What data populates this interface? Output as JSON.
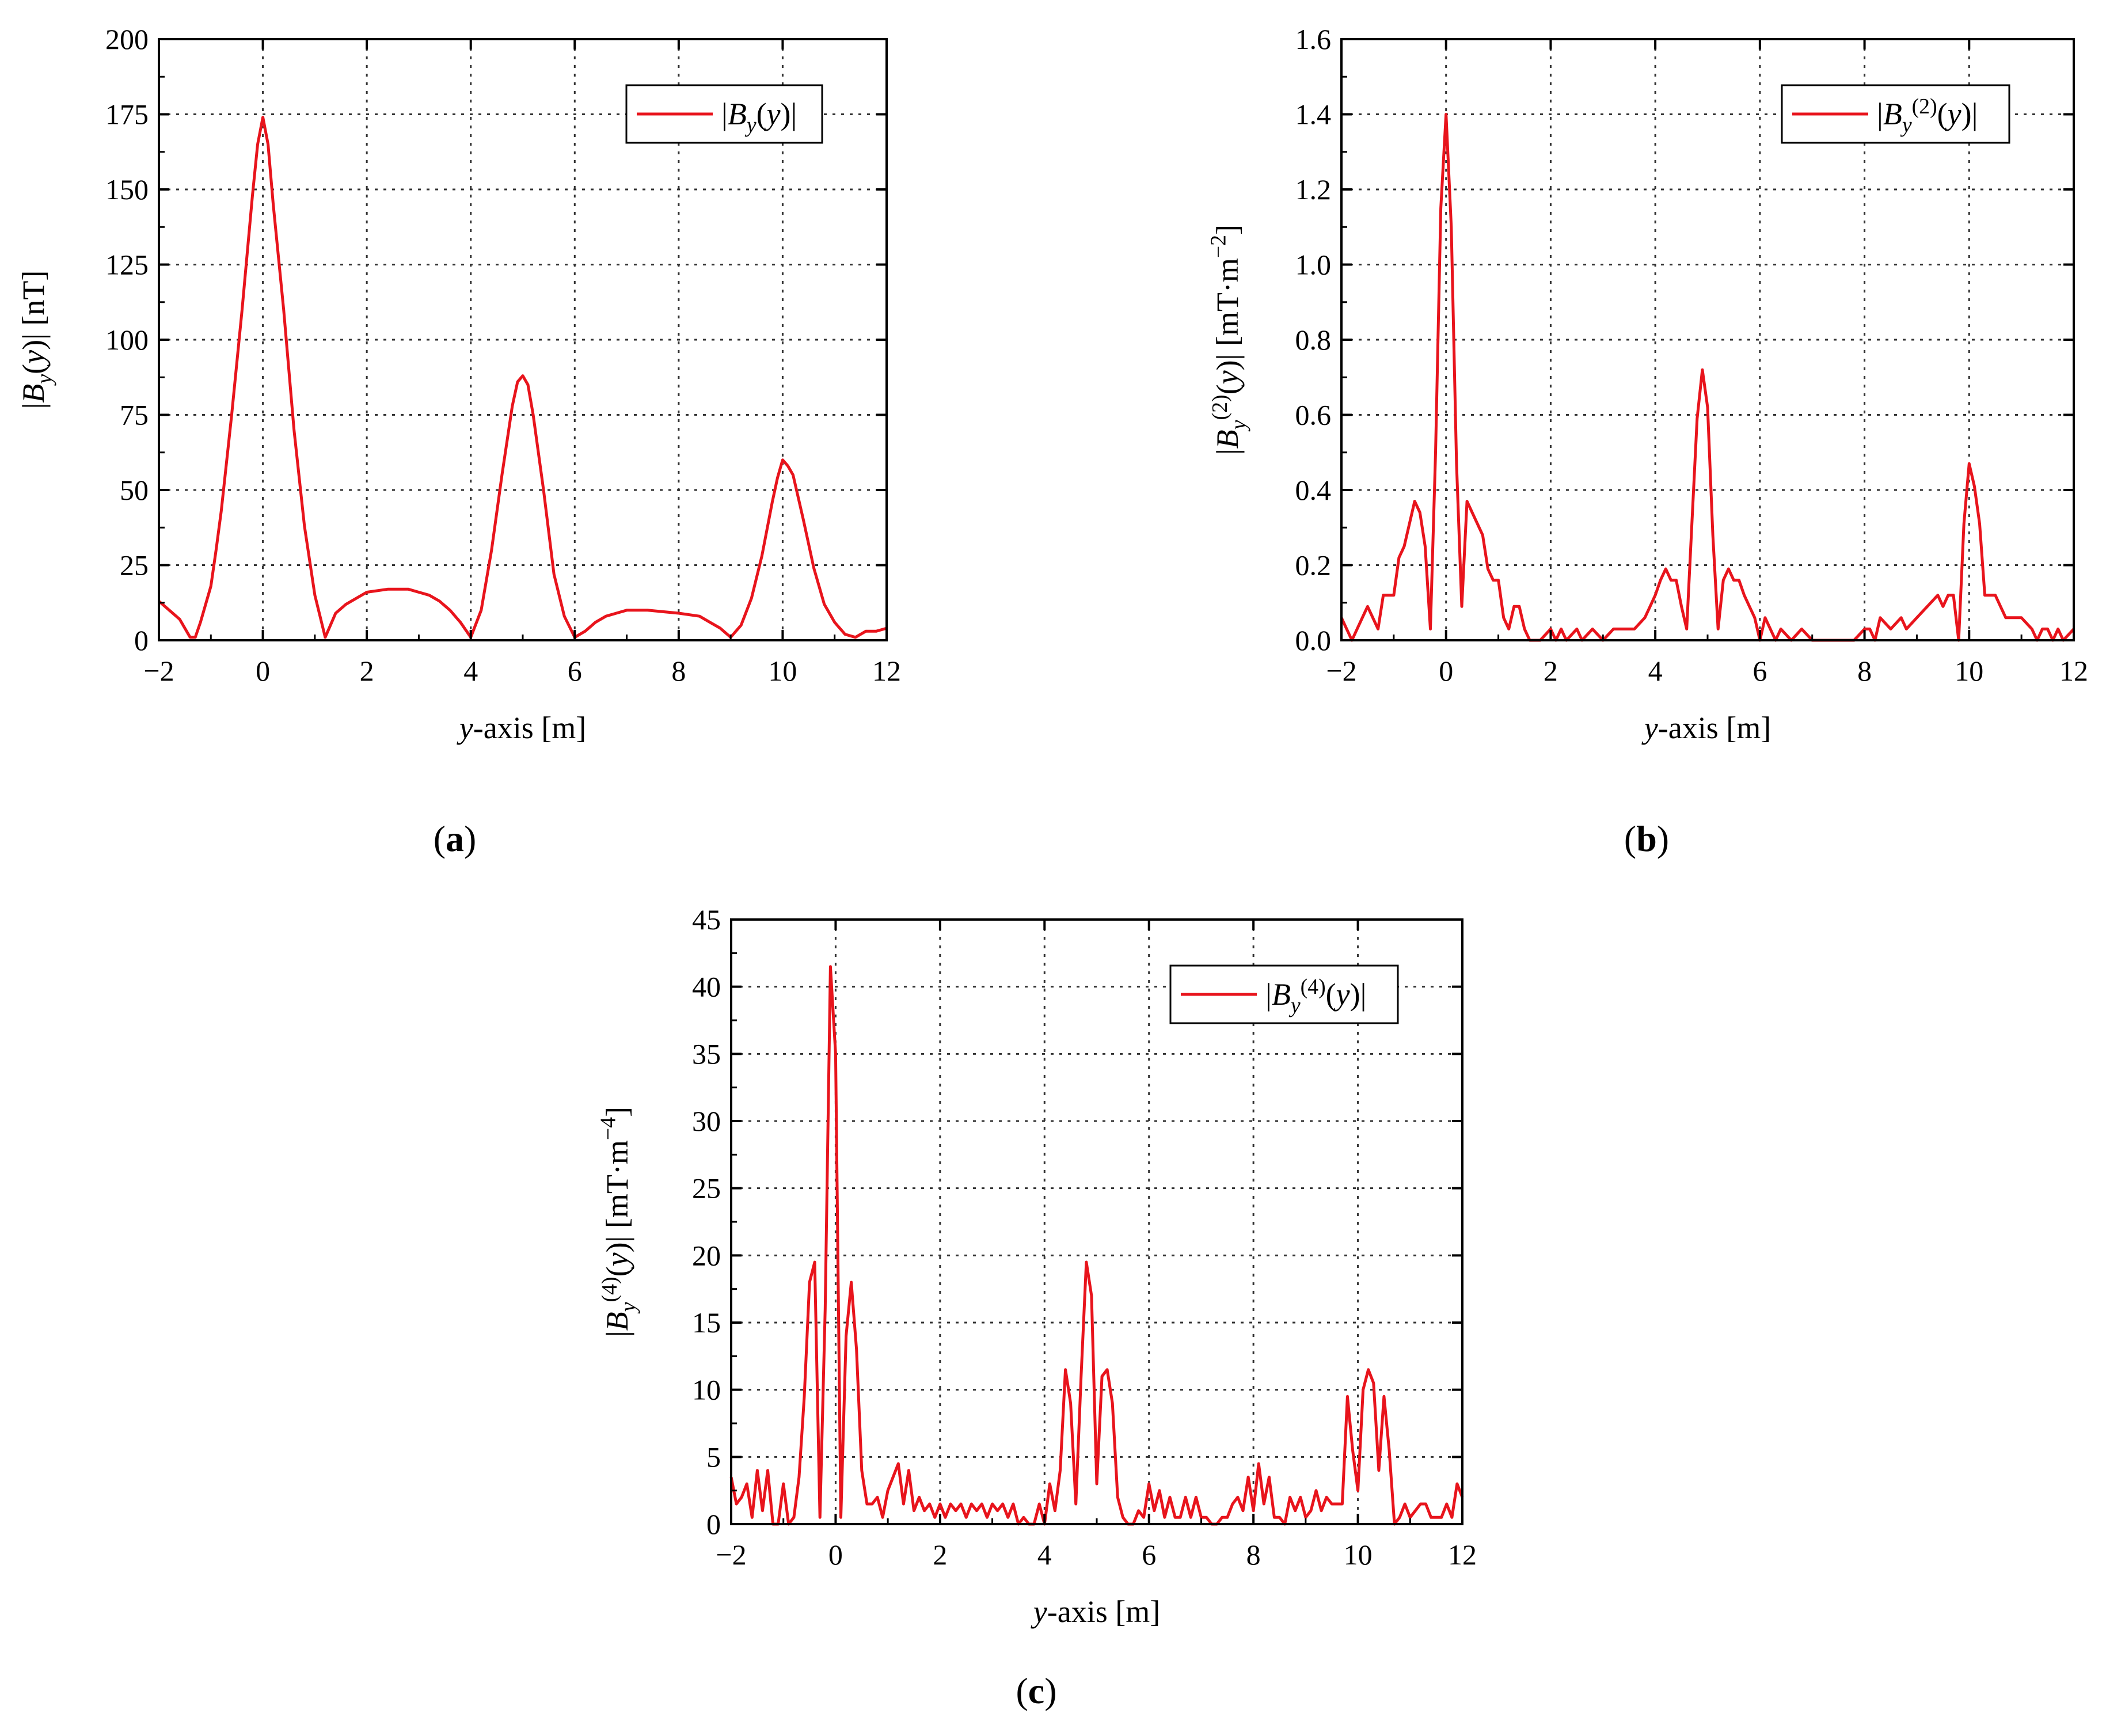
{
  "chart_data": [
    {
      "type": "line",
      "panel": "a",
      "caption": "a",
      "xlabel_italic": "y",
      "xlabel_rest": "-axis [m]",
      "ylabel": "|By(y)| [nT]",
      "legend": "|By(y)|",
      "legend_position": "top-right",
      "xlim": [
        -2,
        12
      ],
      "ylim": [
        0,
        200
      ],
      "xticks": [
        -2,
        0,
        2,
        4,
        6,
        8,
        10,
        12
      ],
      "yticks": [
        0,
        25,
        50,
        75,
        100,
        125,
        150,
        175,
        200
      ],
      "grid": true,
      "color": "#e8141c",
      "series": [
        {
          "x": [
            -2,
            -1.8,
            -1.6,
            -1.4,
            -1.3,
            -1.2,
            -1.0,
            -0.9,
            -0.8,
            -0.6,
            -0.4,
            -0.2,
            -0.1,
            0,
            0.1,
            0.2,
            0.4,
            0.6,
            0.8,
            1.0,
            1.2,
            1.4,
            1.6,
            2.0,
            2.4,
            2.8,
            3.0,
            3.2,
            3.4,
            3.6,
            3.8,
            4.0,
            4.2,
            4.4,
            4.6,
            4.8,
            4.9,
            5.0,
            5.1,
            5.2,
            5.4,
            5.6,
            5.8,
            6.0,
            6.2,
            6.4,
            6.6,
            6.8,
            7.0,
            7.4,
            8.0,
            8.4,
            8.6,
            8.8,
            9.0,
            9.2,
            9.4,
            9.6,
            9.8,
            9.9,
            10.0,
            10.1,
            10.2,
            10.4,
            10.6,
            10.8,
            11.0,
            11.2,
            11.4,
            11.6,
            11.8,
            12.0
          ],
          "y": [
            13,
            10,
            7,
            1,
            1,
            6,
            18,
            30,
            43,
            75,
            110,
            148,
            165,
            174,
            165,
            145,
            110,
            70,
            38,
            15,
            1,
            9,
            12,
            16,
            17,
            17,
            16,
            15,
            13,
            10,
            6,
            1,
            10,
            30,
            55,
            78,
            86,
            88,
            85,
            75,
            50,
            22,
            8,
            1,
            3,
            6,
            8,
            9,
            10,
            10,
            9,
            8,
            6,
            4,
            1,
            5,
            14,
            28,
            46,
            54,
            60,
            58,
            55,
            40,
            24,
            12,
            6,
            2,
            1,
            3,
            3,
            4
          ]
        }
      ]
    },
    {
      "type": "line",
      "panel": "b",
      "caption": "b",
      "xlabel_italic": "y",
      "xlabel_rest": "-axis [m]",
      "ylabel": "|By(2)(y)| [mT·m−2]",
      "legend": "|By(2)(y)|",
      "legend_position": "top-right",
      "xlim": [
        -2,
        12
      ],
      "ylim": [
        0,
        1.6
      ],
      "xticks": [
        -2,
        0,
        2,
        4,
        6,
        8,
        10,
        12
      ],
      "yticks": [
        0.0,
        0.2,
        0.4,
        0.6,
        0.8,
        1.0,
        1.2,
        1.4,
        1.6
      ],
      "grid": true,
      "color": "#e8141c",
      "series": [
        {
          "x": [
            -2,
            -1.8,
            -1.6,
            -1.5,
            -1.4,
            -1.3,
            -1.2,
            -1.1,
            -1.0,
            -0.9,
            -0.8,
            -0.7,
            -0.6,
            -0.5,
            -0.4,
            -0.3,
            -0.2,
            -0.1,
            0,
            0.1,
            0.2,
            0.3,
            0.4,
            0.5,
            0.6,
            0.7,
            0.8,
            0.9,
            1.0,
            1.1,
            1.2,
            1.3,
            1.4,
            1.5,
            1.6,
            1.8,
            2.0,
            2.1,
            2.2,
            2.3,
            2.5,
            2.6,
            2.8,
            3.0,
            3.2,
            3.4,
            3.6,
            3.8,
            3.9,
            4.0,
            4.1,
            4.2,
            4.3,
            4.4,
            4.5,
            4.6,
            4.7,
            4.8,
            4.9,
            5.0,
            5.1,
            5.2,
            5.3,
            5.4,
            5.5,
            5.6,
            5.7,
            5.8,
            5.9,
            6.0,
            6.1,
            6.2,
            6.3,
            6.4,
            6.6,
            6.8,
            7.0,
            7.2,
            7.4,
            7.8,
            8.0,
            8.1,
            8.2,
            8.3,
            8.5,
            8.7,
            8.8,
            9.0,
            9.2,
            9.4,
            9.5,
            9.6,
            9.7,
            9.8,
            9.9,
            10.0,
            10.1,
            10.2,
            10.3,
            10.4,
            10.5,
            10.6,
            10.7,
            10.8,
            11.0,
            11.2,
            11.3,
            11.4,
            11.5,
            11.6,
            11.7,
            11.8,
            12.0
          ],
          "y": [
            0.06,
            0.0,
            0.06,
            0.09,
            0.06,
            0.03,
            0.12,
            0.12,
            0.12,
            0.22,
            0.25,
            0.31,
            0.37,
            0.34,
            0.25,
            0.03,
            0.5,
            1.15,
            1.4,
            1.1,
            0.47,
            0.09,
            0.37,
            0.34,
            0.31,
            0.28,
            0.19,
            0.16,
            0.16,
            0.06,
            0.03,
            0.09,
            0.09,
            0.03,
            0.0,
            0.0,
            0.03,
            0.0,
            0.03,
            0.0,
            0.03,
            0.0,
            0.03,
            0.0,
            0.03,
            0.03,
            0.03,
            0.06,
            0.09,
            0.12,
            0.16,
            0.19,
            0.16,
            0.16,
            0.09,
            0.03,
            0.31,
            0.59,
            0.72,
            0.62,
            0.28,
            0.03,
            0.16,
            0.19,
            0.16,
            0.16,
            0.12,
            0.09,
            0.06,
            0.0,
            0.06,
            0.03,
            0.0,
            0.03,
            0.0,
            0.03,
            0.0,
            0.0,
            0.0,
            0.0,
            0.03,
            0.03,
            0.0,
            0.06,
            0.03,
            0.06,
            0.03,
            0.06,
            0.09,
            0.12,
            0.09,
            0.12,
            0.12,
            0.0,
            0.31,
            0.47,
            0.41,
            0.31,
            0.12,
            0.12,
            0.12,
            0.09,
            0.06,
            0.06,
            0.06,
            0.03,
            0.0,
            0.03,
            0.03,
            0.0,
            0.03,
            0.0,
            0.03
          ]
        }
      ]
    },
    {
      "type": "line",
      "panel": "c",
      "caption": "c",
      "xlabel_italic": "y",
      "xlabel_rest": "-axis [m]",
      "ylabel": "|By(4)(y)| [mT·m−4]",
      "legend": "|By(4)(y)|",
      "legend_position": "top-right",
      "xlim": [
        -2,
        12
      ],
      "ylim": [
        0,
        45
      ],
      "xticks": [
        -2,
        0,
        2,
        4,
        6,
        8,
        10,
        12
      ],
      "yticks": [
        0,
        5,
        10,
        15,
        20,
        25,
        30,
        35,
        40,
        45
      ],
      "grid": true,
      "color": "#e8141c",
      "series": [
        {
          "x": [
            -2.0,
            -1.9,
            -1.8,
            -1.7,
            -1.6,
            -1.5,
            -1.4,
            -1.3,
            -1.2,
            -1.1,
            -1.0,
            -0.9,
            -0.8,
            -0.7,
            -0.6,
            -0.5,
            -0.4,
            -0.3,
            -0.2,
            -0.1,
            0.0,
            0.1,
            0.2,
            0.3,
            0.4,
            0.5,
            0.6,
            0.7,
            0.8,
            0.9,
            1.0,
            1.1,
            1.2,
            1.3,
            1.4,
            1.5,
            1.6,
            1.7,
            1.8,
            1.9,
            2.0,
            2.1,
            2.2,
            2.3,
            2.4,
            2.5,
            2.6,
            2.7,
            2.8,
            2.9,
            3.0,
            3.1,
            3.2,
            3.3,
            3.4,
            3.5,
            3.6,
            3.7,
            3.8,
            3.9,
            4.0,
            4.1,
            4.2,
            4.3,
            4.4,
            4.5,
            4.6,
            4.7,
            4.8,
            4.9,
            5.0,
            5.1,
            5.2,
            5.3,
            5.4,
            5.5,
            5.6,
            5.7,
            5.8,
            5.9,
            6.0,
            6.1,
            6.2,
            6.3,
            6.4,
            6.5,
            6.6,
            6.7,
            6.8,
            6.9,
            7.0,
            7.1,
            7.2,
            7.3,
            7.4,
            7.5,
            7.6,
            7.7,
            7.8,
            7.9,
            8.0,
            8.1,
            8.2,
            8.3,
            8.4,
            8.5,
            8.6,
            8.7,
            8.8,
            8.9,
            9.0,
            9.1,
            9.2,
            9.3,
            9.4,
            9.5,
            9.6,
            9.7,
            9.8,
            9.9,
            10.0,
            10.1,
            10.2,
            10.3,
            10.4,
            10.5,
            10.6,
            10.7,
            10.8,
            10.9,
            11.0,
            11.1,
            11.2,
            11.3,
            11.4,
            11.5,
            11.6,
            11.7,
            11.8,
            11.9,
            12.0
          ],
          "y": [
            3.5,
            1.5,
            2.0,
            3.0,
            0.5,
            4.0,
            1.0,
            4.0,
            0.0,
            0.0,
            3.0,
            0.0,
            0.5,
            3.5,
            9.5,
            18.0,
            19.5,
            0.5,
            16.0,
            41.5,
            35.0,
            0.5,
            14.0,
            18.0,
            13.0,
            4.0,
            1.5,
            1.5,
            2.0,
            0.5,
            2.5,
            3.5,
            4.5,
            1.5,
            4.0,
            1.0,
            2.0,
            1.0,
            1.5,
            0.5,
            1.5,
            0.5,
            1.5,
            1.0,
            1.5,
            0.5,
            1.5,
            1.0,
            1.5,
            0.5,
            1.5,
            1.0,
            1.5,
            0.5,
            1.5,
            0.0,
            0.5,
            0.0,
            0.0,
            1.5,
            0.0,
            3.0,
            1.0,
            4.0,
            11.5,
            9.0,
            1.5,
            11.0,
            19.5,
            17.0,
            3.0,
            11.0,
            11.5,
            9.0,
            2.0,
            0.5,
            0.0,
            0.0,
            1.0,
            0.5,
            3.0,
            1.0,
            2.5,
            0.5,
            2.0,
            0.5,
            0.5,
            2.0,
            0.5,
            2.0,
            0.5,
            0.5,
            0.0,
            0.0,
            0.5,
            0.5,
            1.5,
            2.0,
            1.0,
            3.5,
            1.0,
            4.5,
            1.5,
            3.5,
            0.5,
            0.5,
            0.0,
            2.0,
            1.0,
            2.0,
            0.5,
            1.0,
            2.5,
            1.0,
            2.0,
            1.5,
            1.5,
            1.5,
            9.5,
            5.5,
            2.5,
            10.0,
            11.5,
            10.5,
            4.0,
            9.5,
            5.5,
            0.0,
            0.5,
            1.5,
            0.5,
            1.0,
            1.5,
            1.5,
            0.5,
            0.5,
            0.5,
            1.5,
            0.5,
            3.0,
            2.0
          ]
        }
      ]
    }
  ]
}
